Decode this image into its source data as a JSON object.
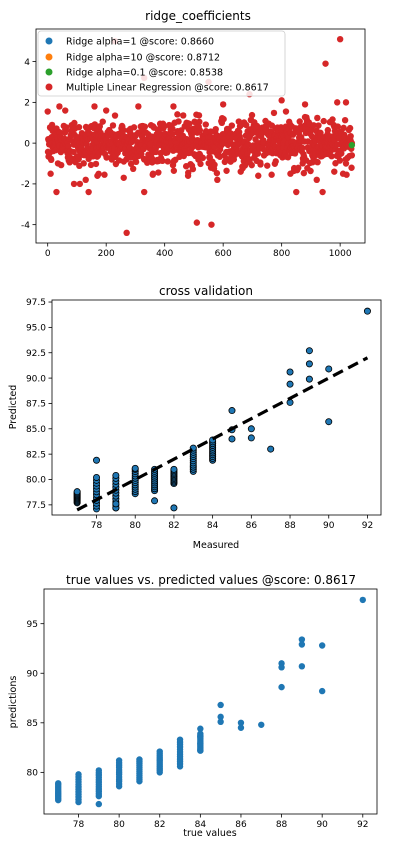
{
  "chart_data": [
    {
      "type": "scatter",
      "title": "ridge_coefficients",
      "xlabel": "",
      "ylabel": "",
      "xlim": [
        -40,
        1085
      ],
      "ylim": [
        -4.9,
        5.6
      ],
      "xticks": [
        0,
        200,
        400,
        600,
        800,
        1000
      ],
      "yticks": [
        -4,
        -2,
        0,
        2,
        4
      ],
      "grid": false,
      "legend_position": "top-left",
      "legend": [
        {
          "name": "Ridge alpha=1 @score: 0.8660",
          "color": "#1f77b4"
        },
        {
          "name": "Ridge alpha=10 @score: 0.8712",
          "color": "#ff7f0e"
        },
        {
          "name": "Ridge alpha=0.1 @score: 0.8538",
          "color": "#2ca02c"
        },
        {
          "name": "Multiple Linear Regression @score: 0.8617",
          "color": "#d62728"
        }
      ],
      "series": [
        {
          "name": "Multiple Linear Regression @score: 0.8617",
          "color": "#d62728",
          "points": [
            [
              1000,
              5.1
            ],
            [
              950,
              3.9
            ],
            [
              270,
              -4.4
            ],
            [
              510,
              -3.9
            ],
            [
              560,
              -4.0
            ],
            [
              30,
              -2.4
            ],
            [
              110,
              -2.0
            ],
            [
              90,
              -2.0
            ],
            [
              140,
              -2.4
            ],
            [
              330,
              -2.4
            ],
            [
              850,
              -2.4
            ],
            [
              940,
              -2.4
            ],
            [
              920,
              -1.8
            ],
            [
              580,
              -1.8
            ],
            [
              130,
              -1.8
            ],
            [
              230,
              5.0
            ],
            [
              330,
              3.2
            ],
            [
              550,
              3.0
            ],
            [
              690,
              2.4
            ],
            [
              800,
              2.1
            ],
            [
              990,
              2.0
            ],
            [
              1020,
              2.0
            ],
            [
              880,
              1.9
            ],
            [
              600,
              1.9
            ],
            [
              430,
              1.8
            ],
            [
              310,
              1.8
            ],
            [
              200,
              1.6
            ],
            [
              160,
              1.8
            ],
            [
              60,
              1.6
            ],
            [
              40,
              1.8
            ],
            [
              1010,
              -1.5
            ],
            [
              720,
              -1.6
            ],
            [
              480,
              -1.6
            ],
            [
              360,
              -1.5
            ],
            [
              260,
              -1.7
            ],
            [
              170,
              -1.6
            ],
            [
              10,
              -1.5
            ],
            [
              980,
              -1.4
            ],
            [
              830,
              -1.5
            ],
            [
              660,
              -1.4
            ],
            [
              1030,
              -0.1
            ],
            [
              1040,
              0.0
            ],
            [
              1020,
              -1.0
            ]
          ]
        },
        {
          "name": "Ridge alpha=0.1 @score: 0.8538",
          "color": "#2ca02c",
          "points": [
            [
              1040,
              -0.1
            ]
          ]
        }
      ],
      "dense_band": {
        "x_range": [
          0,
          1040
        ],
        "y_spread": 1.3,
        "color": "#d62728",
        "count": 1040
      }
    },
    {
      "type": "scatter",
      "title": "cross validation",
      "xlabel": "Measured",
      "ylabel": "Predicted",
      "xlim": [
        75.7,
        92.7
      ],
      "ylim": [
        76.5,
        97.7
      ],
      "xticks": [
        78,
        80,
        82,
        84,
        86,
        88,
        90,
        92
      ],
      "yticks": [
        77.5,
        80.0,
        82.5,
        85.0,
        87.5,
        90.0,
        92.5,
        95.0,
        97.5
      ],
      "grid": false,
      "reference_line": {
        "from": [
          77,
          77
        ],
        "to": [
          92,
          92
        ],
        "style": "dashed",
        "color": "#000000"
      },
      "points": [
        [
          92,
          96.6
        ],
        [
          89,
          92.7
        ],
        [
          89,
          91.4
        ],
        [
          90,
          90.9
        ],
        [
          88,
          90.6
        ],
        [
          89,
          89.9
        ],
        [
          88,
          89.4
        ],
        [
          88,
          87.6
        ],
        [
          85,
          86.8
        ],
        [
          90,
          85.7
        ],
        [
          86,
          85.0
        ],
        [
          85,
          84.9
        ],
        [
          86,
          84.1
        ],
        [
          85,
          84.0
        ],
        [
          87,
          83.0
        ],
        [
          78,
          81.9
        ],
        [
          82,
          77.2
        ],
        [
          81,
          77.9
        ],
        [
          79,
          77.2
        ],
        [
          79,
          77.6
        ],
        [
          80,
          81.1
        ]
      ],
      "columns": [
        {
          "x": 77,
          "y_min": 77.7,
          "y_max": 78.8
        },
        {
          "x": 78,
          "y_min": 77.1,
          "y_max": 80.2
        },
        {
          "x": 79,
          "y_min": 77.2,
          "y_max": 80.4
        },
        {
          "x": 80,
          "y_min": 78.6,
          "y_max": 81.0
        },
        {
          "x": 81,
          "y_min": 78.9,
          "y_max": 81.0
        },
        {
          "x": 82,
          "y_min": 79.6,
          "y_max": 81.0
        },
        {
          "x": 83,
          "y_min": 80.8,
          "y_max": 83.1
        },
        {
          "x": 84,
          "y_min": 81.9,
          "y_max": 83.9
        }
      ]
    },
    {
      "type": "scatter",
      "title": "true values vs. predicted values @score: 0.8617",
      "xlabel": "true values",
      "ylabel": "predictions",
      "xlim": [
        76.3,
        92.7
      ],
      "ylim": [
        75.8,
        98.5
      ],
      "xticks": [
        78,
        80,
        82,
        84,
        86,
        88,
        90,
        92
      ],
      "yticks": [
        80,
        85,
        90,
        95
      ],
      "grid": false,
      "points": [
        [
          92,
          97.4
        ],
        [
          89,
          93.4
        ],
        [
          89,
          92.9
        ],
        [
          90,
          92.8
        ],
        [
          88,
          91.0
        ],
        [
          88,
          90.6
        ],
        [
          89,
          90.7
        ],
        [
          88,
          88.6
        ],
        [
          90,
          88.2
        ],
        [
          85,
          86.8
        ],
        [
          85,
          85.6
        ],
        [
          85,
          85.1
        ],
        [
          86,
          85.0
        ],
        [
          86,
          84.5
        ],
        [
          87,
          84.8
        ],
        [
          84,
          84.4
        ],
        [
          84,
          83.6
        ],
        [
          84,
          82.9
        ],
        [
          84,
          82.2
        ],
        [
          79,
          76.8
        ]
      ],
      "columns": [
        {
          "x": 77,
          "y_min": 77.2,
          "y_max": 78.9
        },
        {
          "x": 78,
          "y_min": 77.0,
          "y_max": 79.8
        },
        {
          "x": 79,
          "y_min": 77.6,
          "y_max": 80.2
        },
        {
          "x": 80,
          "y_min": 78.6,
          "y_max": 81.2
        },
        {
          "x": 81,
          "y_min": 79.1,
          "y_max": 81.3
        },
        {
          "x": 82,
          "y_min": 80.0,
          "y_max": 82.1
        },
        {
          "x": 83,
          "y_min": 80.6,
          "y_max": 83.3
        },
        {
          "x": 84,
          "y_min": 82.2,
          "y_max": 83.9
        }
      ]
    }
  ]
}
